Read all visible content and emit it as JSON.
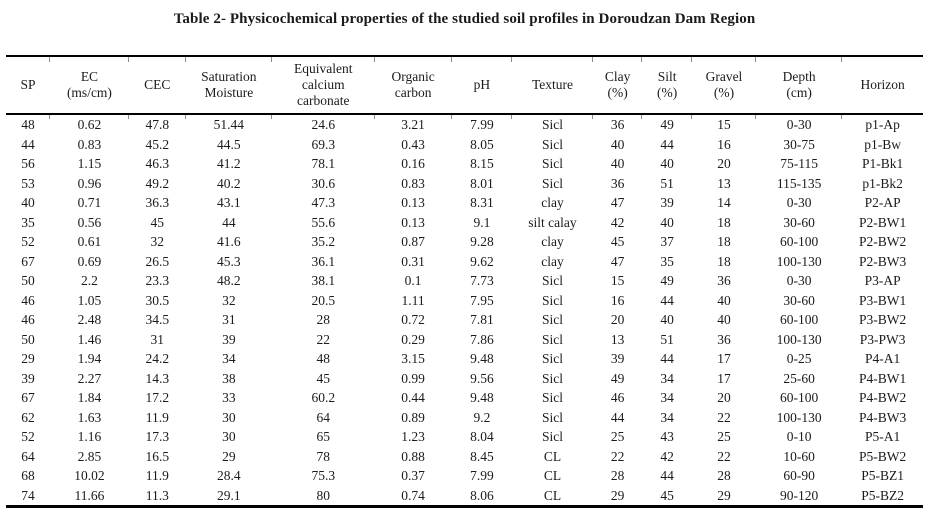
{
  "title": "Table 2- Physicochemical properties of the studied soil profiles in Doroudzan Dam Region",
  "colors": {
    "text": "#1b1b1b",
    "rule": "#000000",
    "background": "#ffffff"
  },
  "table": {
    "columns": [
      "SP",
      "EC\n(ms/cm)",
      "CEC",
      "Saturation\nMoisture",
      "Equivalent\ncalcium\ncarbonate",
      "Organic\ncarbon",
      "pH",
      "Texture",
      "Clay\n(%)",
      "Silt\n(%)",
      "Gravel\n(%)",
      "Depth\n(cm)",
      "Horizon"
    ],
    "rows": [
      [
        "48",
        "0.62",
        "47.8",
        "51.44",
        "24.6",
        "3.21",
        "7.99",
        "Sicl",
        "36",
        "49",
        "15",
        "0-30",
        "p1-Ap"
      ],
      [
        "44",
        "0.83",
        "45.2",
        "44.5",
        "69.3",
        "0.43",
        "8.05",
        "Sicl",
        "40",
        "44",
        "16",
        "30-75",
        "p1-Bw"
      ],
      [
        "56",
        "1.15",
        "46.3",
        "41.2",
        "78.1",
        "0.16",
        "8.15",
        "Sicl",
        "40",
        "40",
        "20",
        "75-115",
        "P1-Bk1"
      ],
      [
        "53",
        "0.96",
        "49.2",
        "40.2",
        "30.6",
        "0.83",
        "8.01",
        "Sicl",
        "36",
        "51",
        "13",
        "115-135",
        "p1-Bk2"
      ],
      [
        "40",
        "0.71",
        "36.3",
        "43.1",
        "47.3",
        "0.13",
        "8.31",
        "clay",
        "47",
        "39",
        "14",
        "0-30",
        "P2-AP"
      ],
      [
        "35",
        "0.56",
        "45",
        "44",
        "55.6",
        "0.13",
        "9.1",
        "silt calay",
        "42",
        "40",
        "18",
        "30-60",
        "P2-BW1"
      ],
      [
        "52",
        "0.61",
        "32",
        "41.6",
        "35.2",
        "0.87",
        "9.28",
        "clay",
        "45",
        "37",
        "18",
        "60-100",
        "P2-BW2"
      ],
      [
        "67",
        "0.69",
        "26.5",
        "45.3",
        "36.1",
        "0.31",
        "9.62",
        "clay",
        "47",
        "35",
        "18",
        "100-130",
        "P2-BW3"
      ],
      [
        "50",
        "2.2",
        "23.3",
        "48.2",
        "38.1",
        "0.1",
        "7.73",
        "Sicl",
        "15",
        "49",
        "36",
        "0-30",
        "P3-AP"
      ],
      [
        "46",
        "1.05",
        "30.5",
        "32",
        "20.5",
        "1.11",
        "7.95",
        "Sicl",
        "16",
        "44",
        "40",
        "30-60",
        "P3-BW1"
      ],
      [
        "46",
        "2.48",
        "34.5",
        "31",
        "28",
        "0.72",
        "7.81",
        "Sicl",
        "20",
        "40",
        "40",
        "60-100",
        "P3-BW2"
      ],
      [
        "50",
        "1.46",
        "31",
        "39",
        "22",
        "0.29",
        "7.86",
        "Sicl",
        "13",
        "51",
        "36",
        "100-130",
        "P3-PW3"
      ],
      [
        "29",
        "1.94",
        "24.2",
        "34",
        "48",
        "3.15",
        "9.48",
        "Sicl",
        "39",
        "44",
        "17",
        "0-25",
        "P4-A1"
      ],
      [
        "39",
        "2.27",
        "14.3",
        "38",
        "45",
        "0.99",
        "9.56",
        "Sicl",
        "49",
        "34",
        "17",
        "25-60",
        "P4-BW1"
      ],
      [
        "67",
        "1.84",
        "17.2",
        "33",
        "60.2",
        "0.44",
        "9.48",
        "Sicl",
        "46",
        "34",
        "20",
        "60-100",
        "P4-BW2"
      ],
      [
        "62",
        "1.63",
        "11.9",
        "30",
        "64",
        "0.89",
        "9.2",
        "Sicl",
        "44",
        "34",
        "22",
        "100-130",
        "P4-BW3"
      ],
      [
        "52",
        "1.16",
        "17.3",
        "30",
        "65",
        "1.23",
        "8.04",
        "Sicl",
        "25",
        "43",
        "25",
        "0-10",
        "P5-A1"
      ],
      [
        "64",
        "2.85",
        "16.5",
        "29",
        "78",
        "0.88",
        "8.45",
        "CL",
        "22",
        "42",
        "22",
        "10-60",
        "P5-BW2"
      ],
      [
        "68",
        "10.02",
        "11.9",
        "28.4",
        "75.3",
        "0.37",
        "7.99",
        "CL",
        "28",
        "44",
        "28",
        "60-90",
        "P5-BZ1"
      ],
      [
        "74",
        "11.66",
        "11.3",
        "29.1",
        "80",
        "0.74",
        "8.06",
        "CL",
        "29",
        "45",
        "29",
        "90-120",
        "P5-BZ2"
      ]
    ]
  }
}
